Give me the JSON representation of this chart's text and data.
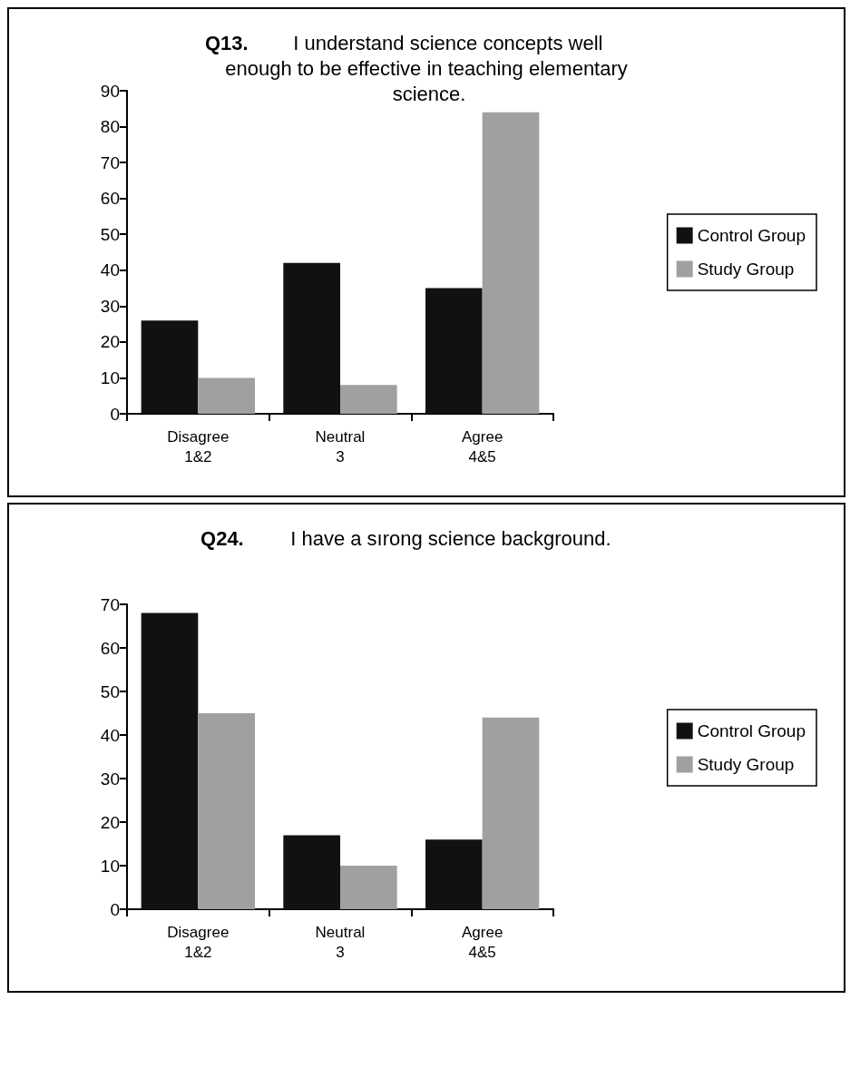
{
  "chart_data": [
    {
      "type": "bar",
      "title": "Q13. I understand science concepts well enough to be effective in teaching elementary science.",
      "categories": [
        "Disagree\n1&2",
        "Neutral\n3",
        "Agree\n4&5"
      ],
      "series": [
        {
          "name": "Control Group",
          "color": "#111111",
          "values": [
            26,
            42,
            35
          ]
        },
        {
          "name": "Study Group",
          "color": "#a0a0a0",
          "values": [
            10,
            8,
            84
          ]
        }
      ],
      "ylim": [
        0,
        90
      ],
      "yticks": [
        0,
        10,
        20,
        30,
        40,
        50,
        60,
        70,
        80,
        90
      ],
      "grid": false,
      "legend": "right"
    },
    {
      "type": "bar",
      "title": "Q24. I have a sırong science background.",
      "categories": [
        "Disagree\n1&2",
        "Neutral\n3",
        "Agree\n4&5"
      ],
      "series": [
        {
          "name": "Control Group",
          "color": "#111111",
          "values": [
            68,
            17,
            16
          ]
        },
        {
          "name": "Study Group",
          "color": "#a0a0a0",
          "values": [
            45,
            10,
            44
          ]
        }
      ],
      "ylim": [
        0,
        70
      ],
      "yticks": [
        0,
        10,
        20,
        30,
        40,
        50,
        60,
        70
      ],
      "grid": false,
      "legend": "right"
    }
  ]
}
